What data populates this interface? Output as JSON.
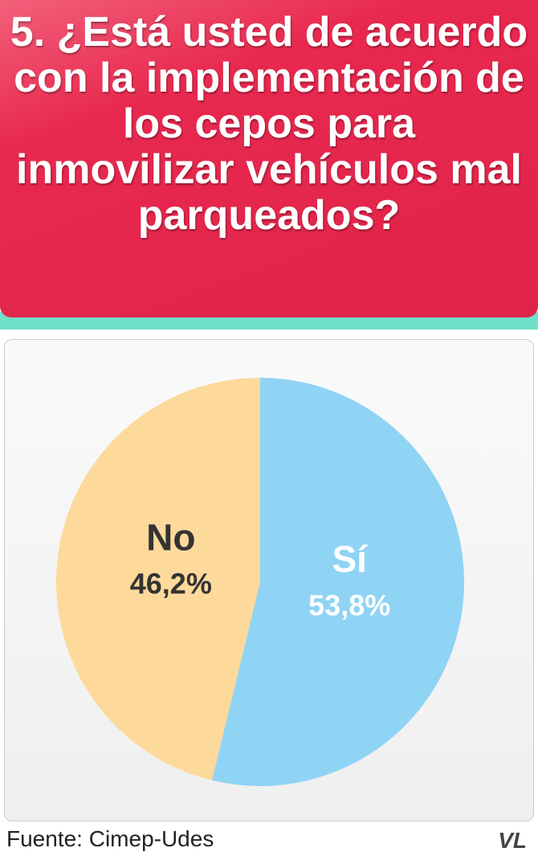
{
  "chart_data": {
    "type": "pie",
    "title": "5. ¿Está usted de acuerdo con la implementación de los cepos para inmovilizar vehículos mal parqueados?",
    "categories": [
      "Sí",
      "No"
    ],
    "values": [
      53.8,
      46.2
    ],
    "value_labels": [
      "53,8%",
      "46,2%"
    ],
    "colors": [
      "#8fd3f5",
      "#fdd99b"
    ],
    "label_colors": [
      "#ffffff",
      "#333333"
    ],
    "source": "Fuente: Cimep-Udes",
    "logo": "VL"
  }
}
